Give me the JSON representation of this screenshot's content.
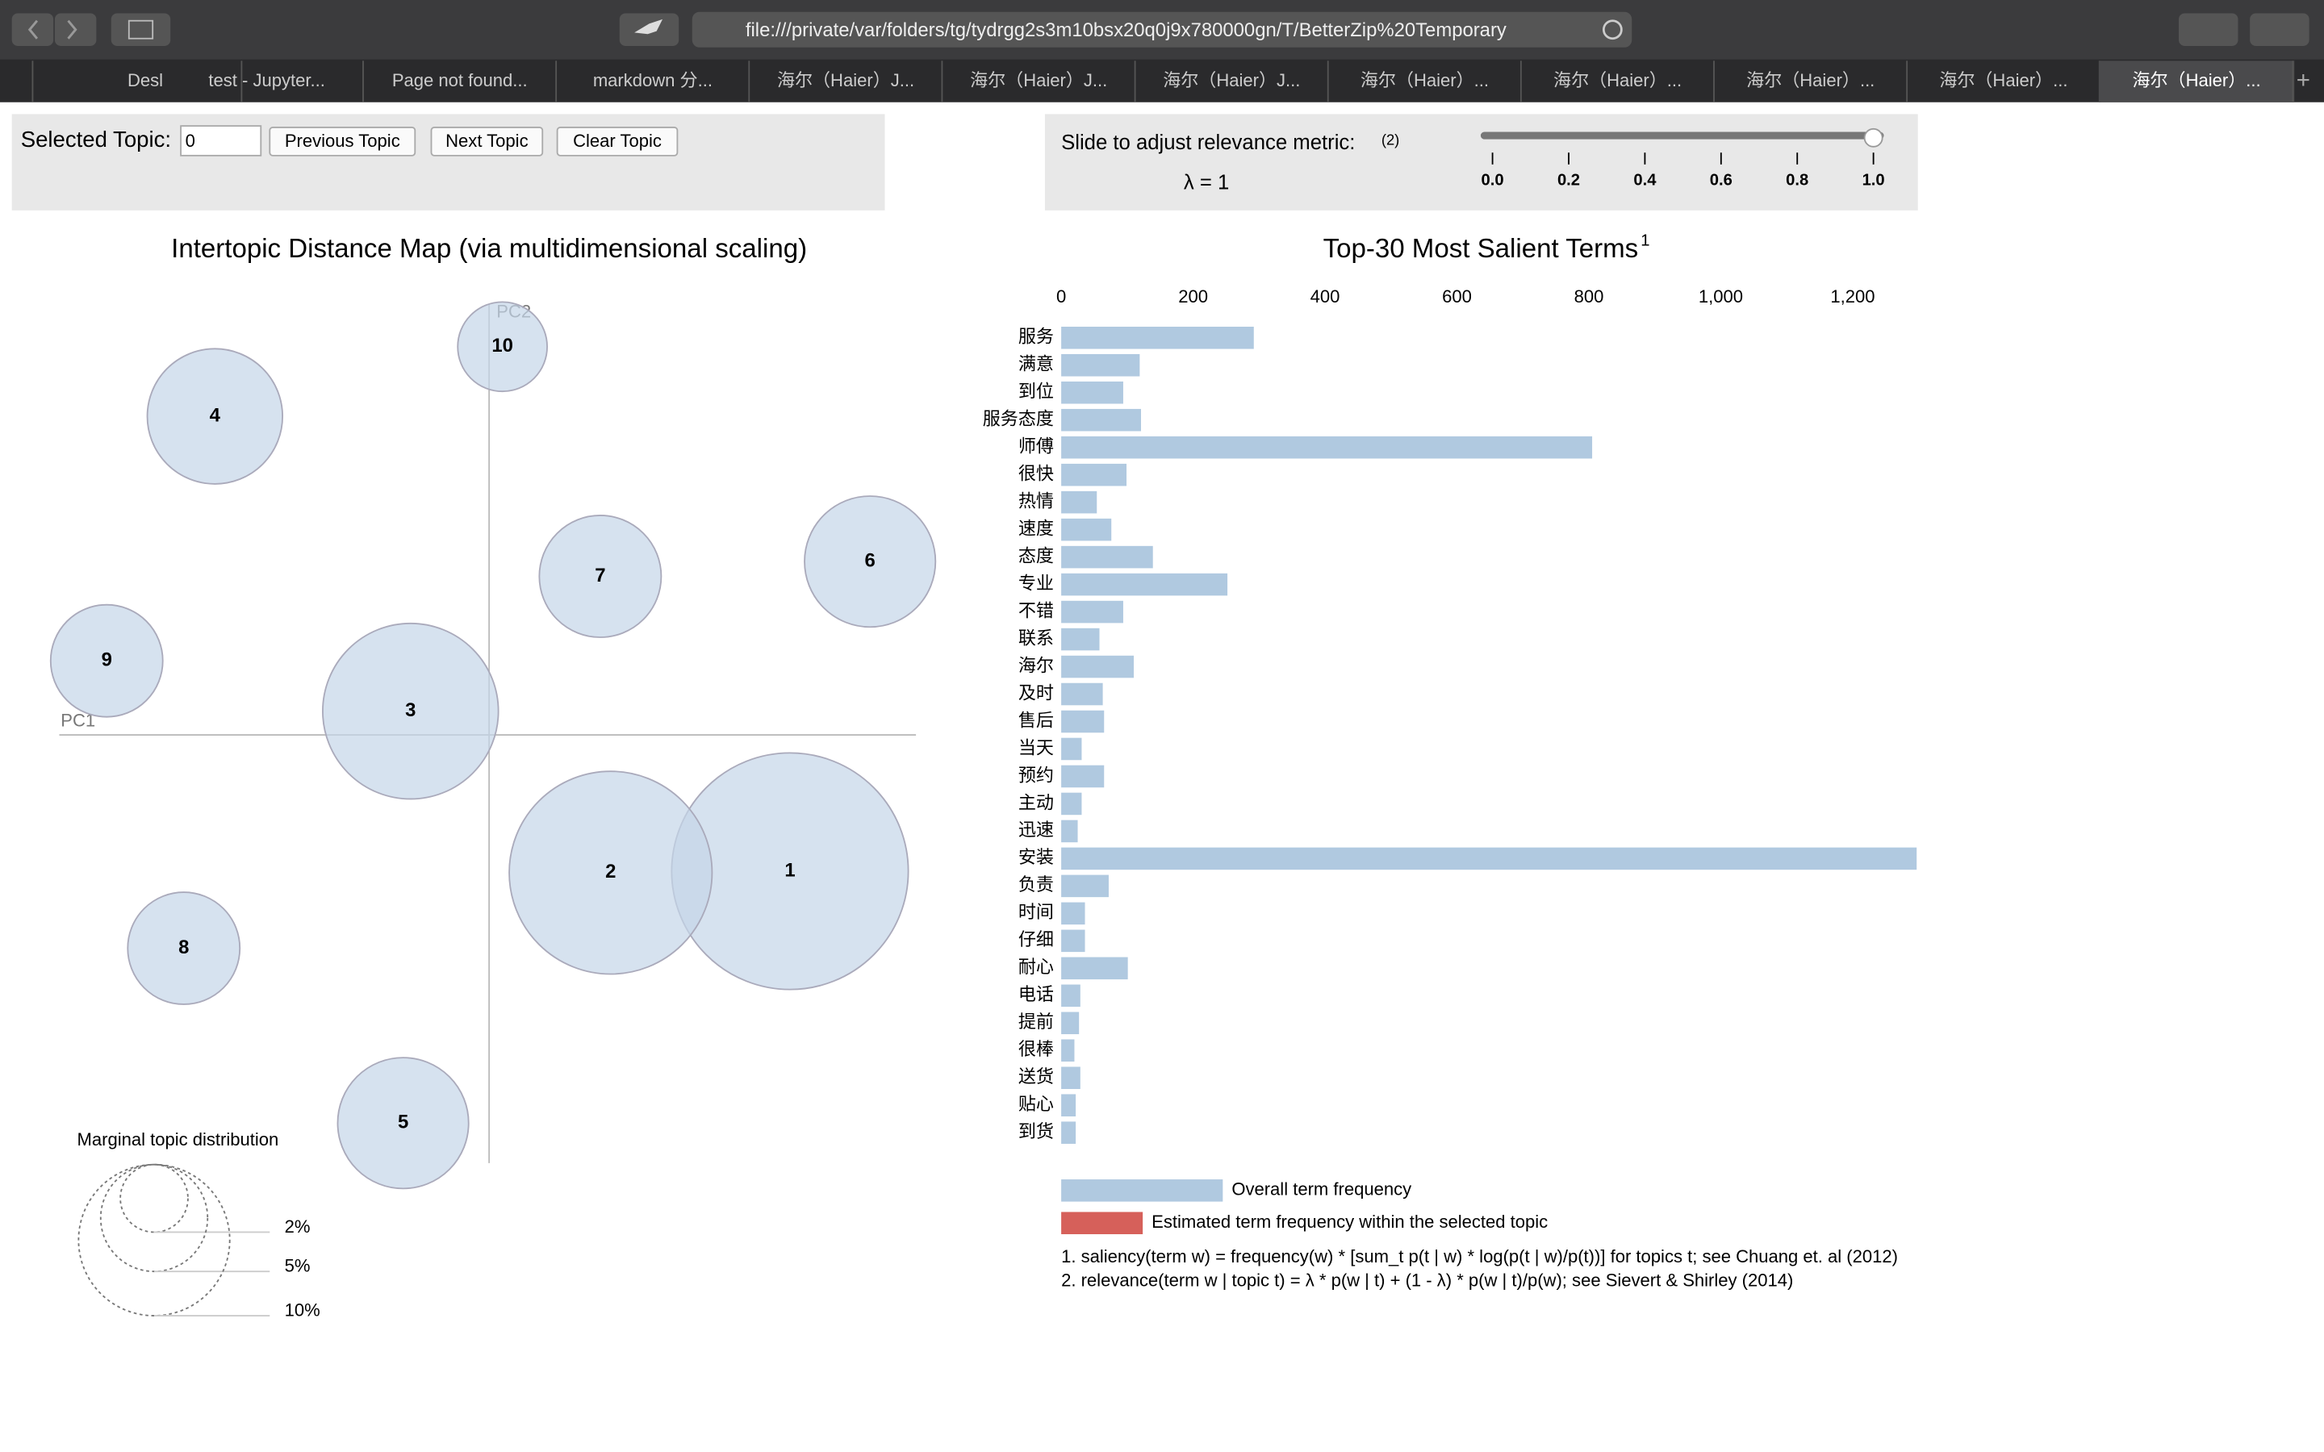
{
  "browser": {
    "url": "file:///private/var/folders/tg/tydrgg2s3m10bsx20q0j9x780000gn/T/BetterZip%20Temporary",
    "tabs": [
      "Desl",
      "test - Jupyter...",
      "Page not found...",
      "markdown 分...",
      "海尔（Haier）J...",
      "海尔（Haier）J...",
      "海尔（Haier）J...",
      "海尔（Haier）...",
      "海尔（Haier）...",
      "海尔（Haier）...",
      "海尔（Haier）...",
      "海尔（Haier）..."
    ]
  },
  "controls": {
    "selected_label": "Selected Topic:",
    "selected_value": "0",
    "buttons": [
      "Previous Topic",
      "Next Topic",
      "Clear Topic"
    ],
    "slider_label": "Slide to adjust relevance metric:",
    "slider_note": "(2)",
    "lambda_text": "λ = 1",
    "slider": {
      "xlim": [
        0,
        1
      ],
      "value": 1,
      "xticks": [
        {
          "value": 0,
          "label": "0.0"
        },
        {
          "value": 0.2,
          "label": "0.2"
        },
        {
          "value": 0.4,
          "label": "0.4"
        },
        {
          "value": 0.6,
          "label": "0.6"
        },
        {
          "value": 0.8,
          "label": "0.8"
        },
        {
          "value": 1,
          "label": "1.0"
        }
      ]
    }
  },
  "chart_data": [
    {
      "type": "bubble",
      "title": "Intertopic Distance Map (via multidimensional scaling)",
      "x_label": "PC1",
      "y_label": "PC2",
      "categories": [
        "1",
        "2",
        "3",
        "4",
        "5",
        "6",
        "7",
        "8",
        "9",
        "10"
      ],
      "sizes": [
        24.5,
        18,
        13.5,
        8,
        7.5,
        7.5,
        6.5,
        5.5,
        5.5,
        3.5
      ],
      "color": "#c5d6e8",
      "size_legend_title": "Marginal topic distribution",
      "size_legend": [
        {
          "value": 2,
          "label": "2%"
        },
        {
          "value": 5,
          "label": "5%"
        },
        {
          "value": 10,
          "label": "10%"
        }
      ]
    },
    {
      "type": "bar",
      "title": "Top-30 Most Salient Terms",
      "title_note": "1",
      "categories": [
        "服务",
        "满意",
        "到位",
        "服务态度",
        "师傅",
        "很快",
        "热情",
        "速度",
        "态度",
        "专业",
        "不错",
        "联系",
        "海尔",
        "及时",
        "售后",
        "当天",
        "预约",
        "主动",
        "迅速",
        "安装",
        "负责",
        "时间",
        "仔细",
        "耐心",
        "电话",
        "提前",
        "很棒",
        "送货",
        "贴心",
        "到货"
      ],
      "series": [
        {
          "name": "Overall term frequency",
          "color": "#b0c9e0",
          "values": [
            292,
            119,
            94,
            121,
            805,
            99,
            54,
            76,
            139,
            252,
            94,
            58,
            110,
            63,
            65,
            31,
            65,
            31,
            25,
            1297,
            72,
            36,
            36,
            101,
            29,
            27,
            20,
            29,
            22,
            22
          ]
        },
        {
          "name": "Estimated term frequency within the selected topic",
          "color": "#d6605a",
          "values": [
            null,
            null,
            null,
            null,
            null,
            null,
            null,
            null,
            null,
            null,
            null,
            null,
            null,
            null,
            null,
            null,
            null,
            null,
            null,
            null,
            null,
            null,
            null,
            null,
            null,
            null,
            null,
            null,
            null,
            null
          ]
        }
      ],
      "xlim": [
        0,
        1300
      ],
      "xticks": [
        0,
        200,
        400,
        600,
        800,
        {
          "value": 1000,
          "label": "1,000"
        },
        {
          "value": 1200,
          "label": "1,200"
        }
      ],
      "notes": [
        "1. saliency(term w) = frequency(w) * [sum_t p(t | w) * log(p(t | w)/p(t))] for topics t; see Chuang et. al (2012)",
        "2. relevance(term w | topic t) = λ * p(w | t) + (1 - λ) * p(w | t)/p(w); see Sievert & Shirley (2014)"
      ]
    }
  ]
}
